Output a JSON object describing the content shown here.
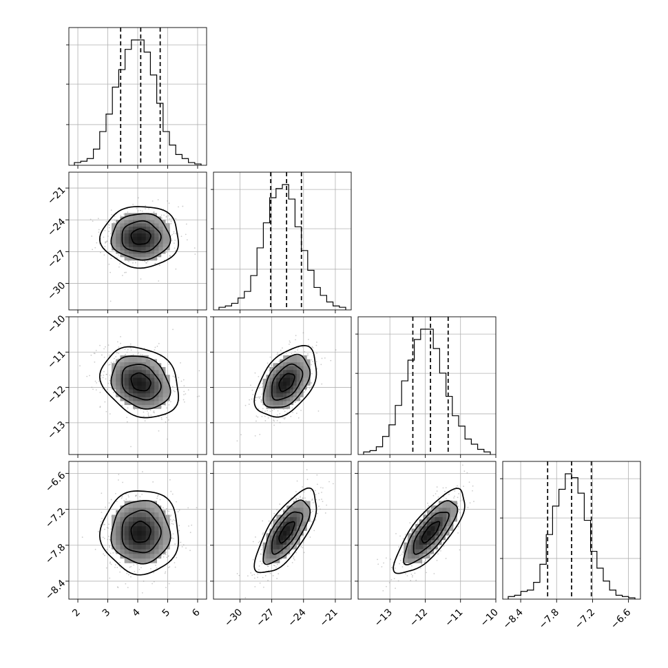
{
  "chart_data": {
    "type": "corner",
    "parameters": [
      {
        "xticks": [
          "2",
          "3",
          "4",
          "5",
          "6"
        ],
        "yticks": [
          "−21",
          "−24",
          "−27",
          "−30"
        ]
      },
      {
        "xticks": [
          "−30",
          "−27",
          "−24",
          "−21"
        ],
        "yticks": [
          "−10",
          "−11",
          "−12",
          "−13"
        ]
      },
      {
        "xticks": [
          "−13",
          "−12",
          "−11",
          "−10"
        ],
        "yticks": [
          "−6.6",
          "−7.2",
          "−7.8",
          "−8.4"
        ]
      },
      {
        "xticks": [
          "−8.4",
          "−7.8",
          "−7.2",
          "−6.6"
        ],
        "yticks": []
      }
    ],
    "histograms": [
      {
        "range": [
          1.7,
          6.3
        ],
        "quantiles": [
          3.43,
          4.1,
          4.75
        ],
        "counts": [
          0.02,
          0.03,
          0.05,
          0.12,
          0.25,
          0.38,
          0.58,
          0.71,
          0.86,
          0.93,
          0.93,
          0.84,
          0.67,
          0.46,
          0.25,
          0.15,
          0.08,
          0.05,
          0.02,
          0.01
        ]
      },
      {
        "range": [
          -32.5,
          -19.5
        ],
        "quantiles": [
          -27.1,
          -25.6,
          -24.2
        ],
        "counts": [
          0.02,
          0.03,
          0.05,
          0.09,
          0.14,
          0.26,
          0.47,
          0.66,
          0.85,
          0.92,
          0.95,
          0.84,
          0.63,
          0.45,
          0.3,
          0.17,
          0.11,
          0.06,
          0.03,
          0.02
        ]
      },
      {
        "range": [
          -13.9,
          -10.0
        ],
        "quantiles": [
          -12.35,
          -11.85,
          -11.35
        ],
        "counts": [
          0.02,
          0.03,
          0.06,
          0.14,
          0.23,
          0.38,
          0.57,
          0.73,
          0.89,
          0.97,
          0.97,
          0.82,
          0.63,
          0.45,
          0.3,
          0.22,
          0.12,
          0.08,
          0.04,
          0.02
        ]
      },
      {
        "range": [
          -8.7,
          -6.4
        ],
        "quantiles": [
          -7.95,
          -7.55,
          -7.22
        ],
        "counts": [
          0.02,
          0.03,
          0.06,
          0.07,
          0.13,
          0.27,
          0.5,
          0.72,
          0.85,
          0.97,
          0.94,
          0.82,
          0.61,
          0.37,
          0.24,
          0.14,
          0.07,
          0.03,
          0.02,
          0.01
        ]
      }
    ],
    "joint_2d": [
      {
        "row": 1,
        "col": 0,
        "mean": [
          4.1,
          -25.6
        ],
        "std": [
          0.65,
          1.45
        ],
        "corr": 0.0
      },
      {
        "row": 2,
        "col": 0,
        "mean": [
          4.1,
          -11.85
        ],
        "std": [
          0.65,
          0.5
        ],
        "corr": -0.22
      },
      {
        "row": 2,
        "col": 1,
        "mean": [
          -25.6,
          -11.85
        ],
        "std": [
          1.45,
          0.5
        ],
        "corr": 0.45
      },
      {
        "row": 3,
        "col": 0,
        "mean": [
          4.1,
          -7.58
        ],
        "std": [
          0.65,
          0.35
        ],
        "corr": 0.0
      },
      {
        "row": 3,
        "col": 1,
        "mean": [
          -25.6,
          -7.58
        ],
        "std": [
          1.45,
          0.35
        ],
        "corr": 0.72
      },
      {
        "row": 3,
        "col": 2,
        "mean": [
          -11.85,
          -7.58
        ],
        "std": [
          0.5,
          0.35
        ],
        "corr": 0.78
      }
    ],
    "contour_levels_sigma": [
      0.5,
      1.0,
      1.5,
      2.0
    ],
    "grid": true
  }
}
